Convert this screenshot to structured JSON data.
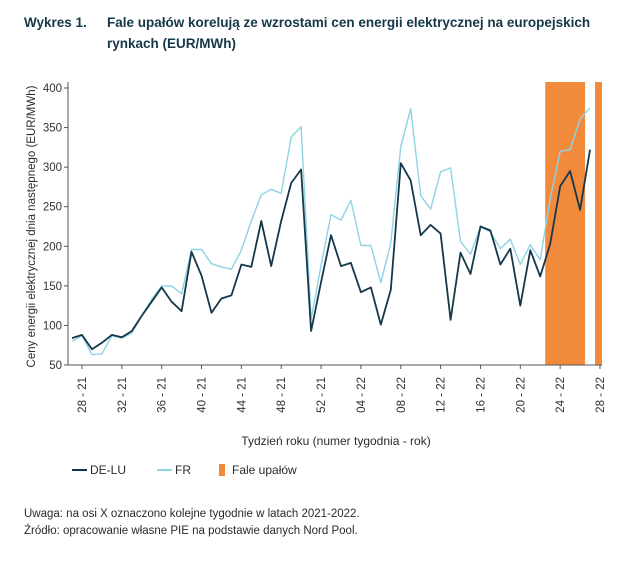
{
  "figure": {
    "number": "Wykres 1.",
    "title": "Fale upałów korelują ze wzrostami cen energii elektrycznej na europejskich rynkach (EUR/MWh)"
  },
  "notes": {
    "line1": "Uwaga: na osi X oznaczono kolejne tygodnie w latach 2021-2022.",
    "line2": "Źródło: opracowanie własne PIE na podstawie danych Nord Pool."
  },
  "colors": {
    "de": "#14384a",
    "fr": "#8ed3e4",
    "heat": "#f28a3c",
    "axis": "#555555"
  },
  "chart_data": {
    "type": "line",
    "title": "Fale upałów korelują ze wzrostami cen energii elektrycznej na europejskich rynkach (EUR/MWh)",
    "xlabel": "Tydzień roku (numer tygodnia - rok)",
    "ylabel": "Ceny energii elektrycznej dnia następnego (EUR/MWh)",
    "ylim": [
      50,
      400
    ],
    "yticks": [
      50,
      100,
      150,
      200,
      250,
      300,
      350,
      400
    ],
    "x": [
      "27-21",
      "28-21",
      "29-21",
      "30-21",
      "31-21",
      "32-21",
      "33-21",
      "34-21",
      "35-21",
      "36-21",
      "37-21",
      "38-21",
      "39-21",
      "40-21",
      "41-21",
      "42-21",
      "43-21",
      "44-21",
      "45-21",
      "46-21",
      "47-21",
      "48-21",
      "49-21",
      "50-21",
      "51-21",
      "52-21",
      "01-22",
      "02-22",
      "03-22",
      "04-22",
      "05-22",
      "06-22",
      "07-22",
      "08-22",
      "09-22",
      "10-22",
      "11-22",
      "12-22",
      "13-22",
      "14-22",
      "15-22",
      "16-22",
      "17-22",
      "18-22",
      "19-22",
      "20-22",
      "21-22",
      "22-22",
      "23-22",
      "24-22",
      "25-22",
      "26-22",
      "27-22",
      "28-22"
    ],
    "xticks": [
      "28 - 21",
      "32 - 21",
      "36 - 21",
      "40 - 21",
      "44 - 21",
      "48 - 21",
      "52 - 21",
      "04 - 22",
      "08 - 22",
      "12 - 22",
      "16 - 22",
      "20 - 22",
      "24 - 22",
      "28 - 22"
    ],
    "series": [
      {
        "name": "DE-LU",
        "values": [
          84,
          88,
          70,
          78,
          88,
          85,
          93,
          112,
          130,
          148,
          130,
          118,
          193,
          163,
          116,
          134,
          138,
          177,
          174,
          232,
          175,
          232,
          280,
          297,
          93,
          155,
          214,
          175,
          179,
          142,
          148,
          101,
          145,
          305,
          283,
          214,
          227,
          216,
          107,
          192,
          165,
          225,
          220,
          177,
          197,
          125,
          195,
          162,
          203,
          276,
          295,
          246,
          322,
          null
        ]
      },
      {
        "name": "FR",
        "values": [
          80,
          87,
          63,
          64,
          87,
          84,
          90,
          112,
          133,
          150,
          150,
          140,
          196,
          196,
          178,
          174,
          171,
          195,
          232,
          265,
          272,
          267,
          338,
          351,
          108,
          176,
          240,
          233,
          258,
          201,
          201,
          154,
          204,
          326,
          374,
          264,
          247,
          294,
          299,
          206,
          190,
          225,
          218,
          197,
          209,
          177,
          202,
          183,
          260,
          320,
          322,
          361,
          375,
          null
        ]
      }
    ],
    "heat_waves": [
      {
        "from": "23-22",
        "to": "26-22"
      },
      {
        "from": "28-22",
        "to": "28-22"
      }
    ],
    "legend": {
      "position": "bottom-left",
      "items": [
        "DE-LU",
        "FR",
        "Fale upałów"
      ]
    },
    "grid": false
  }
}
